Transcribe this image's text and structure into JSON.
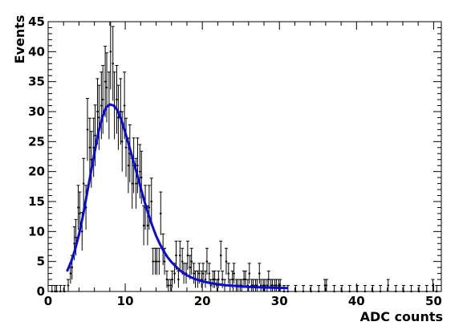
{
  "chart_data": {
    "type": "scatter",
    "title": "",
    "xlabel": "ADC counts",
    "ylabel": "Events",
    "xlim": [
      0,
      51
    ],
    "ylim": [
      0,
      45
    ],
    "grid": false,
    "legend": "none",
    "xticks": [
      {
        "value": 0,
        "label": "0"
      },
      {
        "value": 10,
        "label": "10"
      },
      {
        "value": 20,
        "label": "20"
      },
      {
        "value": 30,
        "label": "30"
      },
      {
        "value": 40,
        "label": "40"
      },
      {
        "value": 50,
        "label": "50"
      }
    ],
    "yticks": [
      {
        "value": 0,
        "label": "0"
      },
      {
        "value": 5,
        "label": "5"
      },
      {
        "value": 10,
        "label": "10"
      },
      {
        "value": 15,
        "label": "15"
      },
      {
        "value": 20,
        "label": "20"
      },
      {
        "value": 25,
        "label": "25"
      },
      {
        "value": 30,
        "label": "30"
      },
      {
        "value": 35,
        "label": "35"
      },
      {
        "value": 40,
        "label": "40"
      },
      {
        "value": 45,
        "label": "45"
      }
    ],
    "bin_width": 0.25,
    "series": [
      {
        "kind": "points_with_errors",
        "color": "#000000",
        "x": [
          0.5,
          0.9,
          1.1,
          1.6,
          2.1,
          2.6,
          2.9,
          3.1,
          3.4,
          3.6,
          3.9,
          4.1,
          4.4,
          4.6,
          4.9,
          5.1,
          5.4,
          5.6,
          5.9,
          6.1,
          6.4,
          6.6,
          6.9,
          7.1,
          7.4,
          7.6,
          7.9,
          8.1,
          8.4,
          8.6,
          8.9,
          9.1,
          9.4,
          9.6,
          9.9,
          10.1,
          10.4,
          10.6,
          10.9,
          11.1,
          11.4,
          11.6,
          11.9,
          12.1,
          12.4,
          12.6,
          12.9,
          13.1,
          13.4,
          13.6,
          13.9,
          14.1,
          14.4,
          14.6,
          14.9,
          15.1,
          15.4,
          15.6,
          15.9,
          16.1,
          16.4,
          16.6,
          16.9,
          17.1,
          17.4,
          17.6,
          17.9,
          18.1,
          18.4,
          18.6,
          18.9,
          19.1,
          19.4,
          19.6,
          19.9,
          20.1,
          20.4,
          20.6,
          20.9,
          21.1,
          21.4,
          21.6,
          21.9,
          22.1,
          22.4,
          22.6,
          22.9,
          23.1,
          23.4,
          23.6,
          23.9,
          24.1,
          24.4,
          24.6,
          24.9,
          25.1,
          25.4,
          25.6,
          25.9,
          26.1,
          26.4,
          26.6,
          26.9,
          27.1,
          27.4,
          27.6,
          27.9,
          28.1,
          28.4,
          28.6,
          28.9,
          29.1,
          29.4,
          29.6,
          29.9,
          30.1,
          30.6,
          31.1,
          32.1,
          33.1,
          34.1,
          35.1,
          35.9,
          36.1,
          37.1,
          38.1,
          39.1,
          40.1,
          41.1,
          42.1,
          43.1,
          44.1,
          45.1,
          46.1,
          47.1,
          48.1,
          49.1,
          49.9,
          50.4
        ],
        "y": [
          0,
          0,
          0,
          0,
          0,
          1,
          3,
          4,
          8,
          9,
          14,
          13,
          10,
          18,
          14,
          27,
          24,
          22,
          24,
          26,
          30,
          29,
          31,
          32,
          35,
          34,
          31,
          40,
          38,
          31,
          32,
          29,
          30,
          25,
          31,
          24,
          21,
          23,
          18,
          21,
          18,
          21,
          20,
          19,
          11,
          14,
          11,
          14,
          15,
          5,
          5,
          5,
          5,
          13,
          7,
          5,
          2,
          1,
          1,
          2,
          3,
          6,
          2,
          6,
          5,
          3,
          3,
          6,
          4,
          5,
          3,
          2,
          2,
          3,
          2,
          3,
          2,
          5,
          3,
          1,
          2,
          2,
          1,
          2,
          6,
          2,
          1,
          5,
          3,
          1,
          2,
          3,
          1,
          1,
          1,
          1,
          2,
          2,
          1,
          3,
          1,
          1,
          1,
          1,
          3,
          1,
          1,
          1,
          1,
          2,
          1,
          1,
          1,
          1,
          1,
          1,
          0,
          0,
          0,
          0,
          0,
          0,
          1,
          1,
          0,
          0,
          0,
          0,
          0,
          0,
          0,
          1,
          0,
          0,
          0,
          0,
          0,
          1,
          0
        ],
        "yerr": [
          1,
          1,
          1,
          1,
          1,
          1.0,
          1.7,
          2.0,
          2.8,
          3.0,
          3.7,
          3.6,
          3.2,
          4.2,
          3.7,
          5.2,
          4.9,
          4.7,
          4.9,
          5.1,
          5.5,
          5.4,
          5.6,
          5.7,
          5.9,
          5.8,
          5.6,
          6.3,
          6.2,
          5.6,
          5.7,
          5.4,
          5.5,
          5.0,
          5.6,
          4.9,
          4.6,
          4.8,
          4.2,
          4.6,
          4.2,
          4.6,
          4.5,
          4.4,
          3.3,
          3.7,
          3.3,
          3.7,
          3.9,
          2.2,
          2.2,
          2.2,
          2.2,
          3.6,
          2.6,
          2.2,
          1.4,
          1.0,
          1.0,
          1.4,
          1.7,
          2.4,
          1.4,
          2.4,
          2.2,
          1.7,
          1.7,
          2.4,
          2.0,
          2.2,
          1.7,
          1.4,
          1.4,
          1.7,
          1.4,
          1.7,
          1.4,
          2.2,
          1.7,
          1.0,
          1.4,
          1.4,
          1.0,
          1.4,
          2.4,
          1.4,
          1.0,
          2.2,
          1.7,
          1.0,
          1.4,
          1.7,
          1.0,
          1.0,
          1.0,
          1.0,
          1.4,
          1.4,
          1.0,
          1.7,
          1.0,
          1.0,
          1.0,
          1.0,
          1.7,
          1.0,
          1.0,
          1.0,
          1.0,
          1.4,
          1.0,
          1.0,
          1.0,
          1.0,
          1.0,
          1.0,
          1,
          1,
          1,
          1,
          1,
          1,
          1.0,
          1.0,
          1,
          1,
          1,
          1,
          1,
          1,
          1,
          1.0,
          1,
          1,
          1,
          1,
          1,
          1.0,
          1
        ]
      },
      {
        "kind": "fit_curve",
        "color": "#0b0bd6",
        "x": [
          2.5,
          3.0,
          3.5,
          4.0,
          4.5,
          5.0,
          5.5,
          6.0,
          6.5,
          7.0,
          7.5,
          8.0,
          8.5,
          9.0,
          9.5,
          10.0,
          10.5,
          11.0,
          11.5,
          12.0,
          12.5,
          13.0,
          13.5,
          14.0,
          14.5,
          15.0,
          15.5,
          16.0,
          17.0,
          18.0,
          19.0,
          20.0,
          21.0,
          22.0,
          23.0,
          24.0,
          25.0,
          26.0,
          27.0,
          28.0,
          29.0,
          30.0,
          31.0
        ],
        "y": [
          3.5,
          5.0,
          7.0,
          9.5,
          12.5,
          16.0,
          19.5,
          23.0,
          26.5,
          29.0,
          30.7,
          31.2,
          31.0,
          30.2,
          28.6,
          26.5,
          24.3,
          22.0,
          19.7,
          17.3,
          15.0,
          12.9,
          11.0,
          9.3,
          7.9,
          6.7,
          5.7,
          4.9,
          3.6,
          2.7,
          2.1,
          1.7,
          1.4,
          1.2,
          1.05,
          0.95,
          0.85,
          0.78,
          0.72,
          0.67,
          0.63,
          0.6,
          0.58
        ]
      }
    ]
  }
}
